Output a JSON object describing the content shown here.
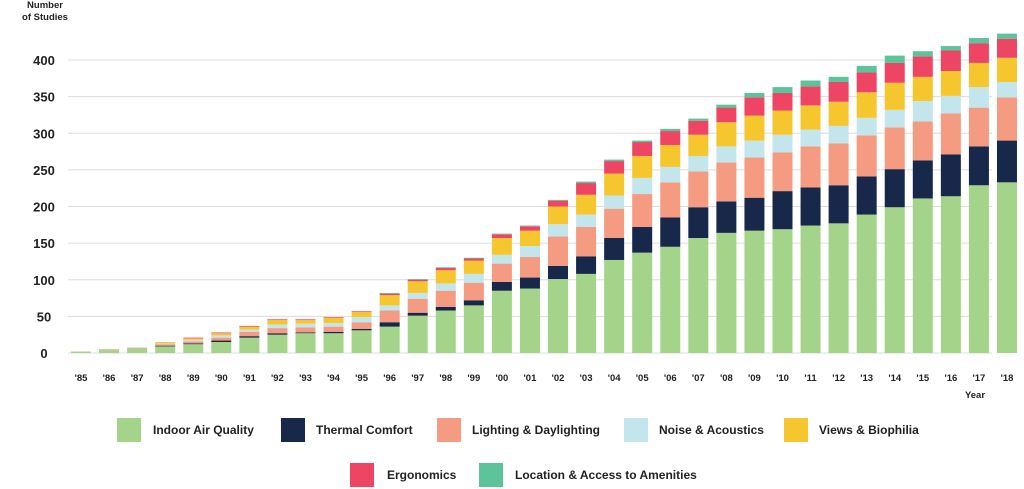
{
  "chart_data": {
    "type": "bar",
    "stacked": true,
    "ylabel": "Number of Studies",
    "ylabel_lines": [
      "Number",
      "of Studies"
    ],
    "xlabel": "Year",
    "ylim": [
      0,
      430
    ],
    "yticks": [
      0,
      50,
      100,
      150,
      200,
      250,
      300,
      350,
      400
    ],
    "grid": true,
    "legend_position": "bottom",
    "categories": [
      "'85",
      "'86",
      "'87",
      "'88",
      "'89",
      "'90",
      "'91",
      "'92",
      "'93",
      "'94",
      "'95",
      "'96",
      "'97",
      "'98",
      "'99",
      "'00",
      "'01",
      "'02",
      "'03",
      "'04",
      "'05",
      "'06",
      "'07",
      "'08",
      "'09",
      "'10",
      "'11",
      "'12",
      "'13",
      "'14",
      "'15",
      "'16",
      "'17",
      "'18"
    ],
    "series": [
      {
        "name": "Indoor Air Quality",
        "color": "#a4d48a",
        "values": [
          2,
          4,
          6,
          9,
          12,
          15,
          21,
          25,
          27,
          27,
          31,
          36,
          51,
          58,
          65,
          85,
          88,
          101,
          108,
          127,
          137,
          145,
          157,
          164,
          167,
          169,
          174,
          177,
          189,
          199,
          211,
          214,
          229,
          233
        ]
      },
      {
        "name": "Thermal Comfort",
        "color": "#18284a",
        "values": [
          0,
          0,
          0,
          1,
          1,
          2,
          2,
          2,
          1,
          2,
          2,
          6,
          4,
          5,
          7,
          12,
          15,
          18,
          24,
          30,
          35,
          40,
          42,
          43,
          45,
          52,
          52,
          52,
          52,
          52,
          52,
          57,
          53,
          57
        ]
      },
      {
        "name": "Lighting & Daylighting",
        "color": "#f59b82",
        "values": [
          0,
          1,
          1,
          2,
          3,
          4,
          6,
          7,
          7,
          7,
          9,
          16,
          19,
          22,
          24,
          25,
          28,
          40,
          40,
          40,
          45,
          48,
          49,
          53,
          55,
          53,
          56,
          57,
          56,
          57,
          53,
          56,
          53,
          59
        ]
      },
      {
        "name": "Noise & Acoustics",
        "color": "#c2e6ec",
        "values": [
          0,
          0,
          1,
          1,
          2,
          3,
          3,
          5,
          5,
          5,
          7,
          7,
          8,
          10,
          12,
          12,
          15,
          17,
          17,
          18,
          22,
          21,
          21,
          22,
          23,
          24,
          23,
          24,
          24,
          24,
          28,
          24,
          28,
          21
        ]
      },
      {
        "name": "Views & Biophilia",
        "color": "#f6c62f",
        "values": [
          0,
          0,
          0,
          2,
          2,
          3,
          4,
          6,
          5,
          7,
          7,
          14,
          16,
          18,
          18,
          23,
          21,
          24,
          27,
          30,
          30,
          30,
          29,
          33,
          34,
          33,
          33,
          33,
          35,
          37,
          33,
          34,
          33,
          33
        ]
      },
      {
        "name": "Ergonomics",
        "color": "#ef4565",
        "values": [
          0,
          0,
          0,
          0,
          1,
          1,
          1,
          1,
          1,
          1,
          1,
          2,
          2,
          3,
          3,
          5,
          6,
          8,
          16,
          17,
          19,
          19,
          19,
          20,
          25,
          24,
          26,
          27,
          27,
          27,
          28,
          28,
          27,
          26
        ]
      },
      {
        "name": "Location & Access to Amenities",
        "color": "#5cc49a",
        "values": [
          0,
          0,
          0,
          0,
          0,
          0,
          0,
          0,
          0,
          0,
          0,
          1,
          1,
          1,
          1,
          1,
          1,
          1,
          2,
          2,
          2,
          3,
          3,
          4,
          6,
          8,
          8,
          7,
          9,
          10,
          7,
          6,
          7,
          7
        ]
      }
    ]
  }
}
